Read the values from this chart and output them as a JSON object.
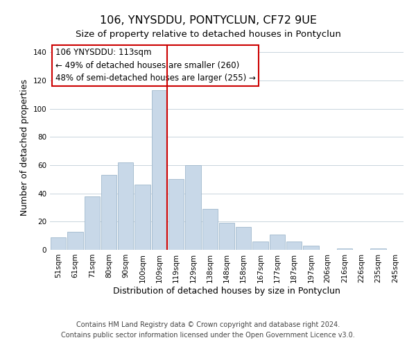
{
  "title": "106, YNYSDDU, PONTYCLUN, CF72 9UE",
  "subtitle": "Size of property relative to detached houses in Pontyclun",
  "xlabel": "Distribution of detached houses by size in Pontyclun",
  "ylabel": "Number of detached properties",
  "bar_labels": [
    "51sqm",
    "61sqm",
    "71sqm",
    "80sqm",
    "90sqm",
    "100sqm",
    "109sqm",
    "119sqm",
    "129sqm",
    "138sqm",
    "148sqm",
    "158sqm",
    "167sqm",
    "177sqm",
    "187sqm",
    "197sqm",
    "206sqm",
    "216sqm",
    "226sqm",
    "235sqm",
    "245sqm"
  ],
  "bar_values": [
    9,
    13,
    38,
    53,
    62,
    46,
    113,
    50,
    60,
    29,
    19,
    16,
    6,
    11,
    6,
    3,
    0,
    1,
    0,
    1,
    0
  ],
  "bar_color": "#c8d8e8",
  "bar_edge_color": "#a0b8cc",
  "vline_color": "#cc0000",
  "annotation_text": "106 YNYSDDU: 113sqm\n← 49% of detached houses are smaller (260)\n48% of semi-detached houses are larger (255) →",
  "annotation_box_color": "#ffffff",
  "annotation_box_edge": "#cc0000",
  "ylim": [
    0,
    145
  ],
  "footer1": "Contains HM Land Registry data © Crown copyright and database right 2024.",
  "footer2": "Contains public sector information licensed under the Open Government Licence v3.0.",
  "background_color": "#ffffff",
  "grid_color": "#c8d4dc",
  "title_fontsize": 11.5,
  "subtitle_fontsize": 9.5,
  "axis_label_fontsize": 9,
  "tick_fontsize": 7.5,
  "annotation_fontsize": 8.5,
  "footer_fontsize": 7
}
